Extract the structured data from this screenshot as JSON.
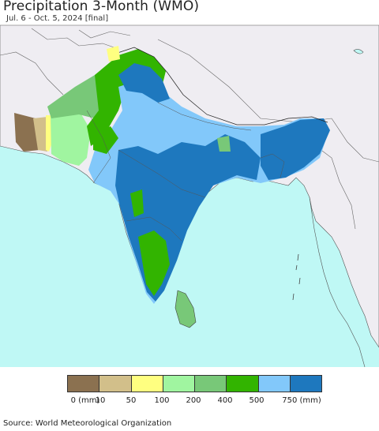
{
  "header": {
    "title": "Precipitation 3-Month (WMO)",
    "subtitle": "Jul. 6 - Oct. 5, 2024 [final]"
  },
  "legend": {
    "colors": [
      "#8b7150",
      "#d2bf8a",
      "#ffff80",
      "#a0f5a0",
      "#78c878",
      "#32b400",
      "#82c8fa",
      "#1e78be"
    ],
    "labels": [
      "0 (mm)",
      "10",
      "50",
      "100",
      "200",
      "400",
      "500",
      "750 (mm)"
    ]
  },
  "footer": {
    "source": "Source: World Meteorological Organization"
  },
  "map": {
    "ocean_color": "#bff8f5",
    "land_color": "#efedf2"
  }
}
